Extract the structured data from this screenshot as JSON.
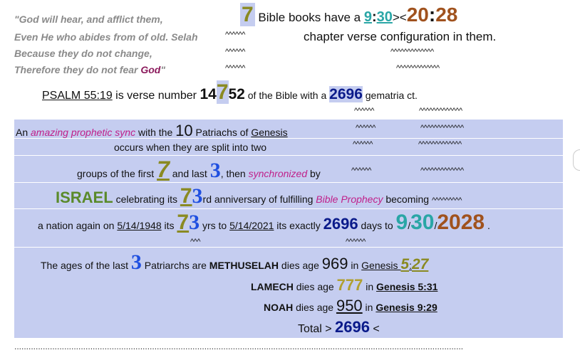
{
  "quote": {
    "line1": "\"God will hear, and afflict them,",
    "line2": "Even He who abides from of old. Selah",
    "line3": "Because they do not change,",
    "line4_a": "Therefore they do not fear ",
    "line4_god": "God",
    "line4_b": "\""
  },
  "top": {
    "num7": "7",
    "t1": "Bible  books  have a ",
    "n9": "9",
    "colon1": ":",
    "n30": "30",
    "sym": "><",
    "n20": "20",
    "colon2": ":",
    "n28": "28",
    "line2": "chapter verse configuration in them."
  },
  "carets": {
    "c5": "^^^^^^",
    "c13": "^^^^^^^^^^^^^",
    "c6": "^^^^^^",
    "c3": "^^^"
  },
  "psalm": {
    "ref": "PSALM 55:19",
    "t1": " is verse number ",
    "n14": "14",
    "n7": "7",
    "n52": "52",
    "t2": " of the Bible with a ",
    "n2696": "2696",
    "t3": " gematria ct."
  },
  "band": {
    "r1_a": "An ",
    "r1_sync": "amazing prophetic sync",
    "r1_b": " with the ",
    "r1_10": "10",
    "r1_c": " Patriachs of ",
    "r1_gen": "Genesis",
    "r2": "occurs when they are split into two",
    "r3_a": "groups of the first ",
    "r3_7": "7",
    "r3_b": " and last ",
    "r3_3": "3",
    "r3_c": ", then ",
    "r3_sync": "synchronized",
    "r3_d": " by",
    "r4_israel": "ISRAEL",
    "r4_a": " celebrating its ",
    "r4_7": "7",
    "r4_3": "3",
    "r4_b": "rd anniversary of fulfilling ",
    "r4_bp": "Bible Prophecy",
    "r4_c": " becoming ",
    "r4_carets": "^^^^^^^^^",
    "r5_a": "a nation again on ",
    "r5_d1": "5/14/1948",
    "r5_b": " its ",
    "r5_7": "7",
    "r5_3": "3",
    "r5_c": " yrs to ",
    "r5_d2": "5/14/2021",
    "r5_d": " its exactly ",
    "r5_2696": "2696",
    "r5_e": " days to ",
    "r5_9": "9",
    "r5_s1": "/",
    "r5_30": "30",
    "r5_s2": "/",
    "r5_2028": "2028",
    "r5_f": " .",
    "r6_a": "The ages of the last ",
    "r6_3": "3",
    "r6_b": " Patriarchs are ",
    "r6_meth": "METHUSELAH",
    "r6_c": " dies age ",
    "r6_969": "969",
    "r6_d": " in ",
    "r6_gen": "Genesis ",
    "r6_5": "5",
    "r6_colon": ":",
    "r6_27": "27",
    "r7_lam": "LAMECH",
    "r7_a": " dies age ",
    "r7_777": "777",
    "r7_b": " in ",
    "r7_gen": "Genesis 5:31",
    "r8_noah": "NOAH",
    "r8_a": " dies age ",
    "r8_950": "950",
    "r8_b": " in ",
    "r8_gen": "Genesis 9:29",
    "r9_a": "Total > ",
    "r9_2696": "2696",
    "r9_b": " <"
  },
  "dots": "............................................................................................................................................................................................."
}
